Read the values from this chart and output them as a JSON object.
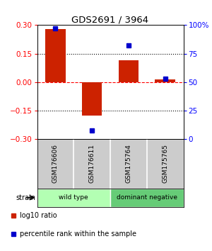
{
  "title": "GDS2691 / 3964",
  "samples": [
    "GSM176606",
    "GSM176611",
    "GSM175764",
    "GSM175765"
  ],
  "log10_ratio": [
    0.28,
    -0.175,
    0.115,
    0.015
  ],
  "percentile_rank": [
    97,
    8,
    82,
    53
  ],
  "bar_color": "#cc2200",
  "dot_color": "#0000cc",
  "ylim_left": [
    -0.3,
    0.3
  ],
  "ylim_right": [
    0,
    100
  ],
  "yticks_left": [
    -0.3,
    -0.15,
    0,
    0.15,
    0.3
  ],
  "yticks_right": [
    0,
    25,
    50,
    75,
    100
  ],
  "ytick_labels_right": [
    "0",
    "25",
    "50",
    "75",
    "100%"
  ],
  "hlines_dotted": [
    -0.15,
    0.15
  ],
  "hline_dashed": 0,
  "groups": [
    {
      "label": "wild type",
      "samples": [
        0,
        1
      ],
      "color": "#b3ffb3"
    },
    {
      "label": "dominant negative",
      "samples": [
        2,
        3
      ],
      "color": "#66cc77"
    }
  ],
  "strain_label": "strain",
  "legend": [
    {
      "color": "#cc2200",
      "label": "log10 ratio"
    },
    {
      "color": "#0000cc",
      "label": "percentile rank within the sample"
    }
  ],
  "background_color": "#ffffff",
  "sample_bg_color": "#cccccc",
  "bar_width": 0.55
}
